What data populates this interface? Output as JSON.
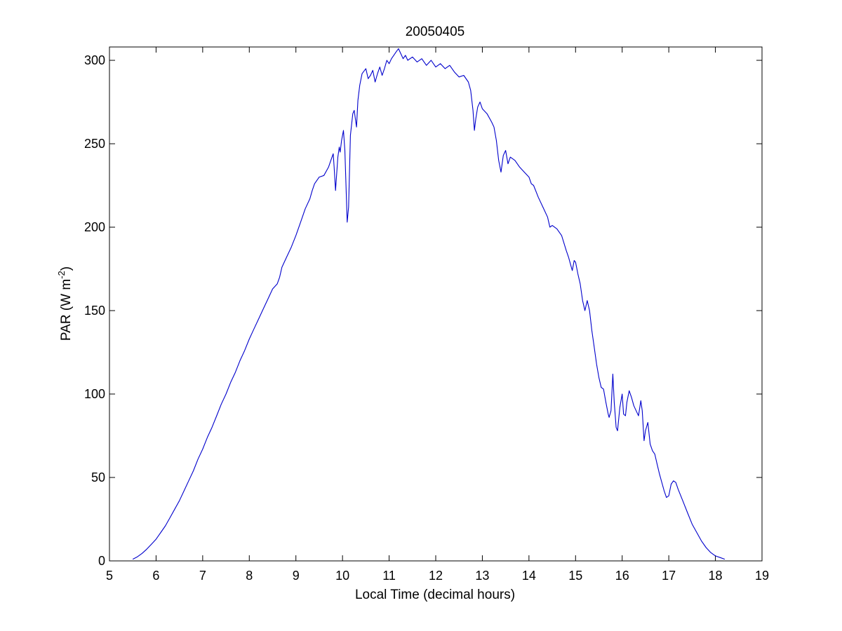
{
  "chart_data": {
    "type": "line",
    "title": "20050405",
    "xlabel": "Local Time (decimal hours)",
    "ylabel_main": "PAR (W m",
    "ylabel_sup": "-2",
    "ylabel_close": ")",
    "xlim": [
      5,
      19
    ],
    "ylim": [
      0,
      308
    ],
    "xticks": [
      5,
      6,
      7,
      8,
      9,
      10,
      11,
      12,
      13,
      14,
      15,
      16,
      17,
      18,
      19
    ],
    "yticks": [
      0,
      50,
      100,
      150,
      200,
      250,
      300
    ],
    "grid": false,
    "series": [
      {
        "color": "#0000cc",
        "points": [
          [
            5.5,
            1
          ],
          [
            5.6,
            2.5
          ],
          [
            5.7,
            4.5
          ],
          [
            5.8,
            7
          ],
          [
            5.9,
            10
          ],
          [
            6.0,
            13
          ],
          [
            6.1,
            17
          ],
          [
            6.2,
            21
          ],
          [
            6.3,
            26
          ],
          [
            6.4,
            31
          ],
          [
            6.5,
            36
          ],
          [
            6.6,
            42
          ],
          [
            6.7,
            48
          ],
          [
            6.8,
            54
          ],
          [
            6.9,
            61
          ],
          [
            7.0,
            67
          ],
          [
            7.1,
            74
          ],
          [
            7.2,
            80
          ],
          [
            7.3,
            87
          ],
          [
            7.4,
            94
          ],
          [
            7.5,
            100
          ],
          [
            7.6,
            107
          ],
          [
            7.7,
            113
          ],
          [
            7.8,
            120
          ],
          [
            7.9,
            126
          ],
          [
            8.0,
            133
          ],
          [
            8.1,
            139
          ],
          [
            8.2,
            145
          ],
          [
            8.3,
            151
          ],
          [
            8.4,
            157
          ],
          [
            8.5,
            163
          ],
          [
            8.6,
            166
          ],
          [
            8.65,
            170
          ],
          [
            8.7,
            176
          ],
          [
            8.8,
            182
          ],
          [
            8.9,
            188
          ],
          [
            9.0,
            195
          ],
          [
            9.1,
            203
          ],
          [
            9.2,
            211
          ],
          [
            9.3,
            217
          ],
          [
            9.35,
            222
          ],
          [
            9.4,
            226
          ],
          [
            9.5,
            230
          ],
          [
            9.6,
            231
          ],
          [
            9.7,
            236
          ],
          [
            9.75,
            240
          ],
          [
            9.8,
            244
          ],
          [
            9.82,
            236
          ],
          [
            9.85,
            222
          ],
          [
            9.87,
            230
          ],
          [
            9.9,
            242
          ],
          [
            9.93,
            248
          ],
          [
            9.95,
            245
          ],
          [
            9.98,
            252
          ],
          [
            10.02,
            258
          ],
          [
            10.05,
            246
          ],
          [
            10.08,
            220
          ],
          [
            10.1,
            203
          ],
          [
            10.13,
            212
          ],
          [
            10.17,
            255
          ],
          [
            10.22,
            268
          ],
          [
            10.25,
            270
          ],
          [
            10.3,
            260
          ],
          [
            10.33,
            276
          ],
          [
            10.37,
            285
          ],
          [
            10.42,
            292
          ],
          [
            10.5,
            295
          ],
          [
            10.55,
            289
          ],
          [
            10.6,
            291
          ],
          [
            10.65,
            294
          ],
          [
            10.7,
            287
          ],
          [
            10.75,
            292
          ],
          [
            10.8,
            296
          ],
          [
            10.85,
            291
          ],
          [
            10.9,
            295
          ],
          [
            10.95,
            300
          ],
          [
            11.0,
            298
          ],
          [
            11.05,
            301
          ],
          [
            11.1,
            303
          ],
          [
            11.15,
            305
          ],
          [
            11.2,
            307
          ],
          [
            11.25,
            304
          ],
          [
            11.3,
            301
          ],
          [
            11.35,
            303
          ],
          [
            11.4,
            300
          ],
          [
            11.5,
            302
          ],
          [
            11.6,
            299
          ],
          [
            11.7,
            301
          ],
          [
            11.8,
            297
          ],
          [
            11.9,
            300
          ],
          [
            12.0,
            296
          ],
          [
            12.1,
            298
          ],
          [
            12.2,
            295
          ],
          [
            12.3,
            297
          ],
          [
            12.4,
            293
          ],
          [
            12.5,
            290
          ],
          [
            12.6,
            291
          ],
          [
            12.7,
            287
          ],
          [
            12.75,
            282
          ],
          [
            12.8,
            270
          ],
          [
            12.83,
            258
          ],
          [
            12.86,
            265
          ],
          [
            12.9,
            272
          ],
          [
            12.95,
            275
          ],
          [
            13.0,
            271
          ],
          [
            13.1,
            268
          ],
          [
            13.2,
            263
          ],
          [
            13.25,
            260
          ],
          [
            13.3,
            252
          ],
          [
            13.35,
            240
          ],
          [
            13.4,
            233
          ],
          [
            13.45,
            243
          ],
          [
            13.5,
            246
          ],
          [
            13.55,
            238
          ],
          [
            13.6,
            242
          ],
          [
            13.7,
            240
          ],
          [
            13.8,
            236
          ],
          [
            13.9,
            233
          ],
          [
            14.0,
            230
          ],
          [
            14.05,
            226
          ],
          [
            14.1,
            225
          ],
          [
            14.2,
            218
          ],
          [
            14.3,
            212
          ],
          [
            14.4,
            206
          ],
          [
            14.45,
            200
          ],
          [
            14.5,
            201
          ],
          [
            14.6,
            199
          ],
          [
            14.7,
            195
          ],
          [
            14.8,
            186
          ],
          [
            14.85,
            182
          ],
          [
            14.9,
            177
          ],
          [
            14.93,
            174
          ],
          [
            14.97,
            180
          ],
          [
            15.0,
            179
          ],
          [
            15.05,
            172
          ],
          [
            15.1,
            166
          ],
          [
            15.15,
            156
          ],
          [
            15.2,
            150
          ],
          [
            15.25,
            156
          ],
          [
            15.3,
            150
          ],
          [
            15.35,
            138
          ],
          [
            15.4,
            128
          ],
          [
            15.45,
            118
          ],
          [
            15.5,
            110
          ],
          [
            15.55,
            104
          ],
          [
            15.6,
            103
          ],
          [
            15.65,
            95
          ],
          [
            15.7,
            88
          ],
          [
            15.72,
            86
          ],
          [
            15.76,
            90
          ],
          [
            15.8,
            112
          ],
          [
            15.83,
            95
          ],
          [
            15.87,
            80
          ],
          [
            15.9,
            78
          ],
          [
            15.95,
            92
          ],
          [
            16.0,
            100
          ],
          [
            16.03,
            88
          ],
          [
            16.07,
            87
          ],
          [
            16.1,
            95
          ],
          [
            16.15,
            102
          ],
          [
            16.2,
            98
          ],
          [
            16.25,
            93
          ],
          [
            16.3,
            90
          ],
          [
            16.35,
            87
          ],
          [
            16.4,
            96
          ],
          [
            16.43,
            90
          ],
          [
            16.47,
            72
          ],
          [
            16.5,
            78
          ],
          [
            16.55,
            83
          ],
          [
            16.6,
            70
          ],
          [
            16.65,
            66
          ],
          [
            16.7,
            64
          ],
          [
            16.75,
            58
          ],
          [
            16.8,
            52
          ],
          [
            16.85,
            47
          ],
          [
            16.9,
            42
          ],
          [
            16.95,
            38
          ],
          [
            17.0,
            39
          ],
          [
            17.05,
            46
          ],
          [
            17.1,
            48
          ],
          [
            17.15,
            47
          ],
          [
            17.2,
            43
          ],
          [
            17.3,
            36
          ],
          [
            17.4,
            29
          ],
          [
            17.5,
            22
          ],
          [
            17.6,
            17
          ],
          [
            17.7,
            12
          ],
          [
            17.8,
            8
          ],
          [
            17.9,
            5
          ],
          [
            18.0,
            3
          ],
          [
            18.1,
            2
          ],
          [
            18.2,
            1
          ]
        ]
      }
    ]
  }
}
